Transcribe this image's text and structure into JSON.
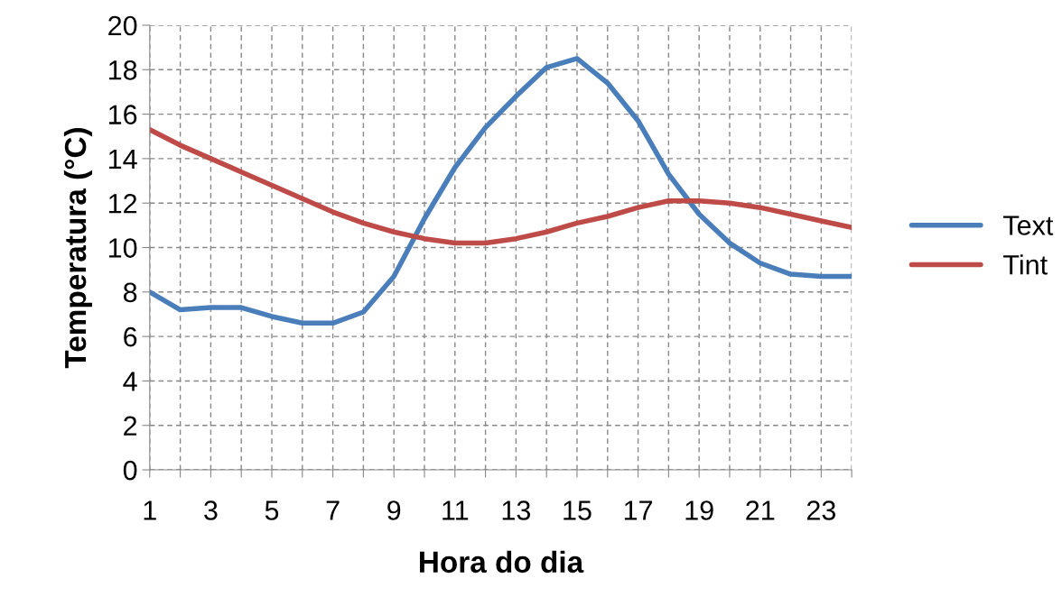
{
  "chart_data": {
    "type": "line",
    "xlabel": "Hora do dia",
    "ylabel": "Temperatura (°C)",
    "categories": [
      "1",
      null,
      "3",
      null,
      "5",
      null,
      "7",
      null,
      "9",
      null,
      "11",
      null,
      "13",
      null,
      "15",
      null,
      "17",
      null,
      "19",
      null,
      "21",
      null,
      "23",
      null
    ],
    "series": [
      {
        "name": "Text",
        "color": "#4a7ebb",
        "values": [
          8.0,
          7.2,
          7.3,
          7.3,
          6.9,
          6.6,
          6.6,
          7.1,
          8.7,
          11.3,
          13.6,
          15.4,
          16.8,
          18.1,
          18.5,
          17.4,
          15.7,
          13.3,
          11.5,
          10.2,
          9.3,
          8.8,
          8.7,
          8.7
        ]
      },
      {
        "name": "Tint",
        "color": "#be4b48",
        "values": [
          15.3,
          14.6,
          14.0,
          13.4,
          12.8,
          12.2,
          11.6,
          11.1,
          10.7,
          10.4,
          10.2,
          10.2,
          10.4,
          10.7,
          11.1,
          11.4,
          11.8,
          12.1,
          12.1,
          12.0,
          11.8,
          11.5,
          11.2,
          10.9
        ]
      }
    ],
    "ylim": [
      0,
      20
    ],
    "yticks": [
      0,
      2,
      4,
      6,
      8,
      10,
      12,
      14,
      16,
      18,
      20
    ],
    "grid": true,
    "legend": "right",
    "marker": "none",
    "line_style": "solid"
  }
}
